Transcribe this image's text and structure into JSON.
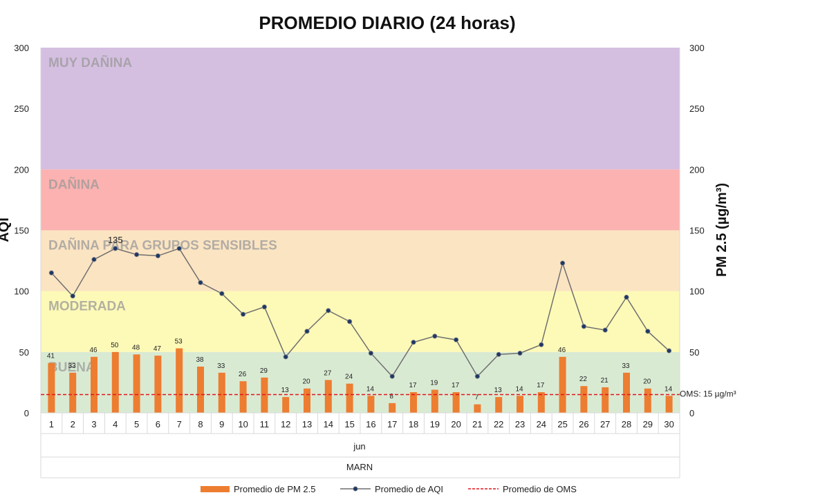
{
  "chart_data": {
    "type": "bar",
    "title": "PROMEDIO DIARIO  (24 horas)",
    "ylabel_left": "AQI",
    "ylabel_right": "PM 2.5 (µg/m³)",
    "ylim": [
      0,
      300
    ],
    "yticks": [
      "0",
      "50",
      "100",
      "150",
      "200",
      "250",
      "300"
    ],
    "categories": [
      "1",
      "2",
      "3",
      "4",
      "5",
      "6",
      "7",
      "8",
      "9",
      "10",
      "11",
      "12",
      "13",
      "14",
      "15",
      "16",
      "17",
      "18",
      "19",
      "20",
      "21",
      "22",
      "23",
      "24",
      "25",
      "26",
      "27",
      "28",
      "29",
      "30"
    ],
    "group_month": "jun",
    "group_station": "MARN",
    "bands": [
      {
        "label": "BUENA",
        "from": 0,
        "to": 50,
        "color": "#d9ead3"
      },
      {
        "label": "MODERADA",
        "from": 50,
        "to": 100,
        "color": "#fdf9b7"
      },
      {
        "label": "DAÑINA PARA GRUPOS SENSIBLES",
        "from": 100,
        "to": 150,
        "color": "#fbe4c2"
      },
      {
        "label": "DAÑINA",
        "from": 150,
        "to": 200,
        "color": "#fbb2b0"
      },
      {
        "label": "MUY DAÑINA",
        "from": 200,
        "to": 300,
        "color": "#d5bfe1"
      }
    ],
    "series": [
      {
        "name": "Promedio de PM  2.5",
        "kind": "bar",
        "color": "#ed7d31",
        "values": [
          41,
          33,
          46,
          50,
          48,
          47,
          53,
          38,
          33,
          26,
          29,
          13,
          20,
          27,
          24,
          14,
          8,
          17,
          19,
          17,
          7,
          13,
          14,
          17,
          46,
          22,
          21,
          33,
          20,
          14
        ],
        "labels": [
          "41",
          "33",
          "46",
          "50",
          "48",
          "47",
          "53",
          "38",
          "33",
          "26",
          "29",
          "13",
          "20",
          "27",
          "24",
          "14",
          "8",
          "17",
          "19",
          "17",
          "7",
          "13",
          "14",
          "17",
          "46",
          "22",
          "21",
          "33",
          "20",
          "14"
        ]
      },
      {
        "name": "Promedio de AQI",
        "kind": "line",
        "color": "#6e6e6e",
        "marker_color": "#1f3864",
        "values": [
          115,
          96,
          126,
          135,
          130,
          129,
          135,
          107,
          98,
          81,
          87,
          46,
          67,
          84,
          75,
          49,
          30,
          58,
          63,
          60,
          30,
          48,
          49,
          56,
          123,
          71,
          68,
          95,
          67,
          51
        ],
        "labeled_value": "135",
        "labeled_index": 3
      },
      {
        "name": "Promedio de OMS",
        "kind": "dashed-line",
        "color": "#e3131b",
        "value": 15,
        "annotation": "OMS: 15 µg/m³"
      }
    ],
    "legend": {
      "position": "bottom",
      "items": [
        "Promedio de PM  2.5",
        "Promedio de AQI",
        "Promedio de OMS"
      ]
    }
  }
}
